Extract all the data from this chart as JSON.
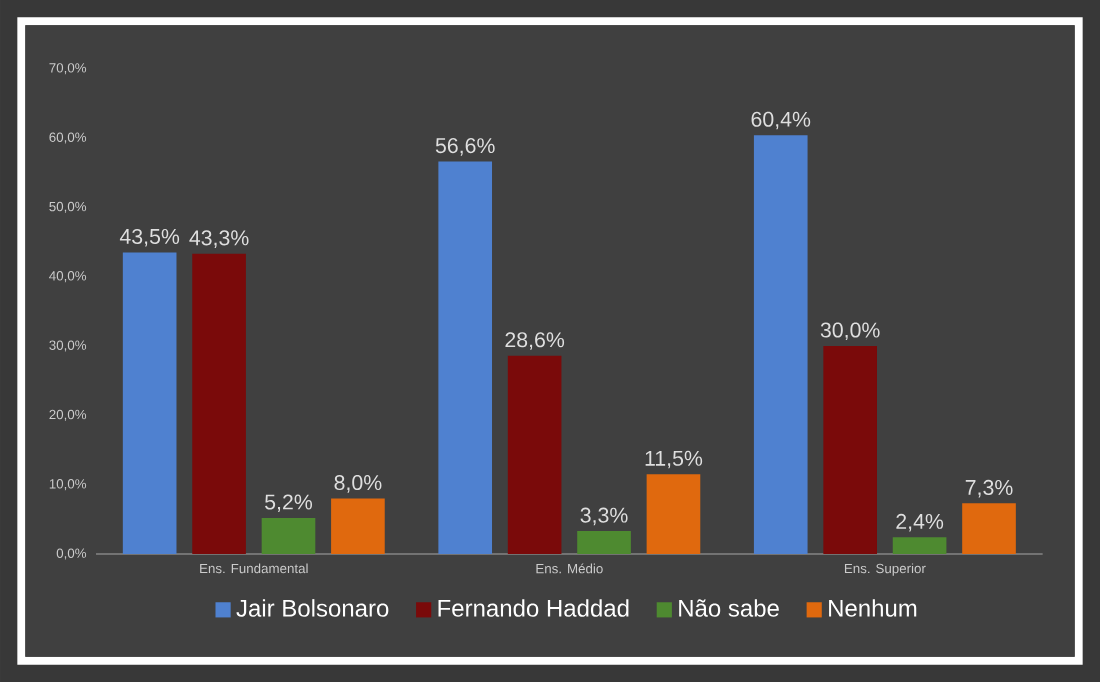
{
  "chart_data": {
    "type": "bar",
    "categories": [
      "Ens. Fundamental",
      "Ens. Médio",
      "Ens. Superior"
    ],
    "series": [
      {
        "name": "Jair Bolsonaro",
        "color": "#4f81d0",
        "values": [
          43.5,
          56.6,
          60.4
        ],
        "value_labels": [
          "43,5%",
          "56,6%",
          "60,4%"
        ]
      },
      {
        "name": "Fernando Haddad",
        "color": "#7a0a0a",
        "values": [
          43.3,
          28.6,
          30.0
        ],
        "value_labels": [
          "43,3%",
          "28,6%",
          "30,0%"
        ]
      },
      {
        "name": "Não sabe",
        "color": "#4e8a30",
        "values": [
          5.2,
          3.3,
          2.4
        ],
        "value_labels": [
          "5,2%",
          "3,3%",
          "2,4%"
        ]
      },
      {
        "name": "Nenhum",
        "color": "#e0690e",
        "values": [
          8.0,
          11.5,
          7.3
        ],
        "value_labels": [
          "8,0%",
          "11,5%",
          "7,3%"
        ]
      }
    ],
    "ylim": [
      0,
      70
    ],
    "yticks": [
      {
        "value": 0,
        "label": "0,0%"
      },
      {
        "value": 10,
        "label": "10,0%"
      },
      {
        "value": 20,
        "label": "20,0%"
      },
      {
        "value": 30,
        "label": "30,0%"
      },
      {
        "value": 40,
        "label": "40,0%"
      },
      {
        "value": 50,
        "label": "50,0%"
      },
      {
        "value": 60,
        "label": "60,0%"
      },
      {
        "value": 70,
        "label": "70,0%"
      }
    ],
    "grid": false,
    "legend": "bottom"
  }
}
